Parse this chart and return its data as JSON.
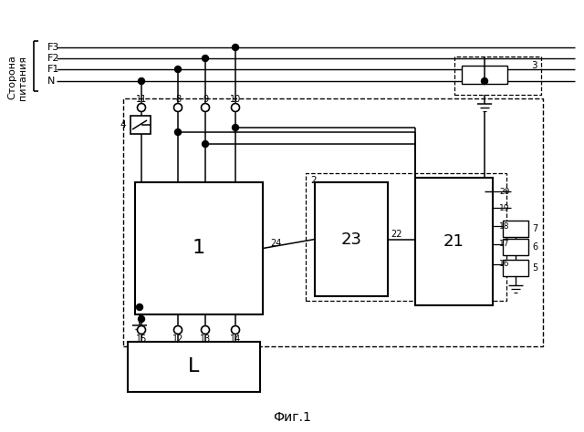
{
  "title": "Фиг.1",
  "bg_color": "#ffffff",
  "figsize": [
    6.4,
    4.74
  ],
  "dpi": 100,
  "phase_labels": [
    "F3",
    "F2",
    "F1",
    "N"
  ],
  "side_text1": "Сторона",
  "side_text2": "питания",
  "block_labels": {
    "b1": "1",
    "b21": "21",
    "b23": "23",
    "bL": "L"
  },
  "node_labels_top": [
    "11",
    "8",
    "9",
    "10"
  ],
  "node_labels_bot": [
    "15",
    "12",
    "13",
    "14"
  ],
  "other_labels": [
    "2",
    "3",
    "4",
    "5",
    "6",
    "7",
    "16",
    "17",
    "18",
    "19",
    "20",
    "22",
    "24"
  ]
}
